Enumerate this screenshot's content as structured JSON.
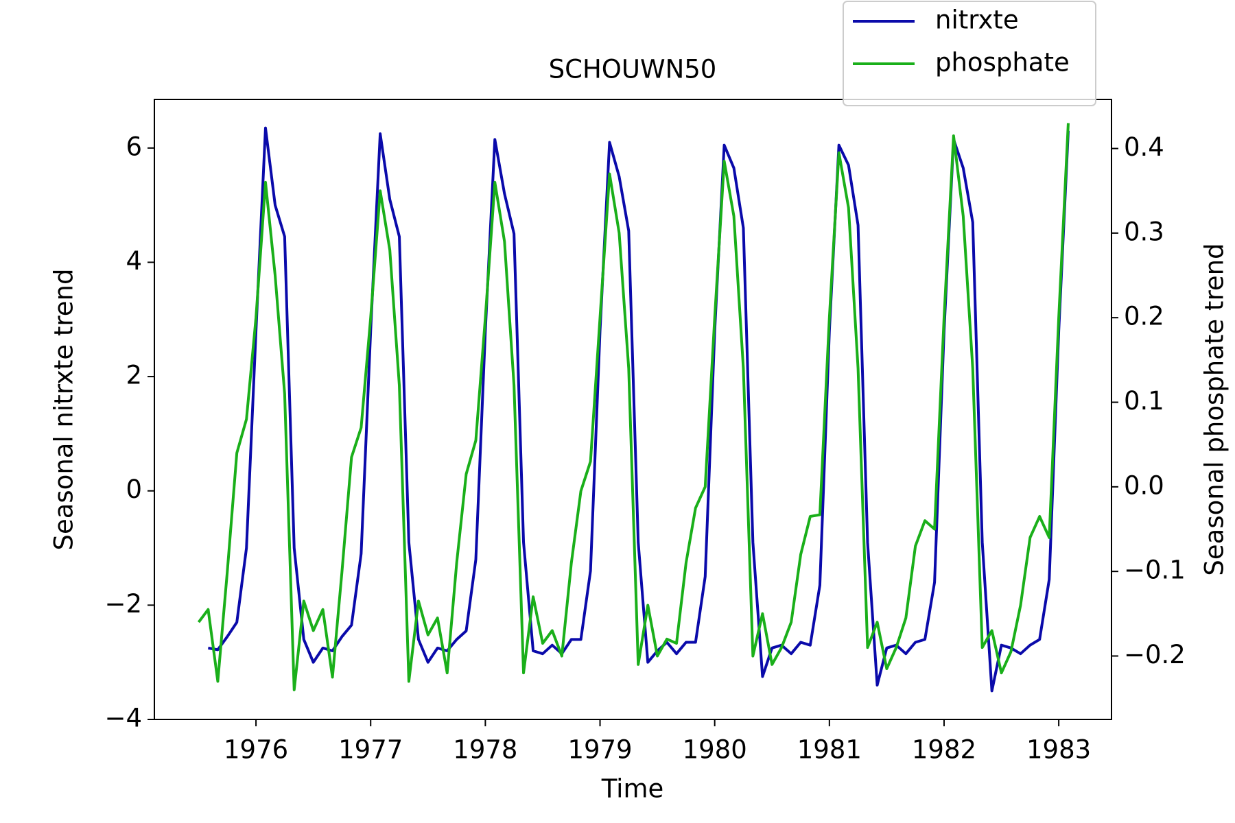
{
  "chart_data": {
    "type": "line",
    "title": "SCHOUWN50",
    "xlabel": "Time",
    "ylabel": "Seasonal nitrxte trend",
    "y2label": "Seasonal phosphate trend",
    "legend": "upper right",
    "x": [
      1975.5,
      1975.583,
      1975.667,
      1975.75,
      1975.833,
      1975.917,
      1976.0,
      1976.083,
      1976.167,
      1976.25,
      1976.333,
      1976.417,
      1976.5,
      1976.583,
      1976.667,
      1976.75,
      1976.833,
      1976.917,
      1977.0,
      1977.083,
      1977.167,
      1977.25,
      1977.333,
      1977.417,
      1977.5,
      1977.583,
      1977.667,
      1977.75,
      1977.833,
      1977.917,
      1978.0,
      1978.083,
      1978.167,
      1978.25,
      1978.333,
      1978.417,
      1978.5,
      1978.583,
      1978.667,
      1978.75,
      1978.833,
      1978.917,
      1979.0,
      1979.083,
      1979.167,
      1979.25,
      1979.333,
      1979.417,
      1979.5,
      1979.583,
      1979.667,
      1979.75,
      1979.833,
      1979.917,
      1980.0,
      1980.083,
      1980.167,
      1980.25,
      1980.333,
      1980.417,
      1980.5,
      1980.583,
      1980.667,
      1980.75,
      1980.833,
      1980.917,
      1981.0,
      1981.083,
      1981.167,
      1981.25,
      1981.333,
      1981.417,
      1981.5,
      1981.583,
      1981.667,
      1981.75,
      1981.833,
      1981.917,
      1982.0,
      1982.083,
      1982.167,
      1982.25,
      1982.333,
      1982.417,
      1982.5,
      1982.583,
      1982.667,
      1982.75,
      1982.833,
      1982.917,
      1983.0,
      1983.083
    ],
    "series": [
      {
        "name": "nitrxte",
        "color": "#0a0aaa",
        "values": [
          null,
          -2.75,
          -2.78,
          -2.55,
          -2.3,
          -1.0,
          2.8,
          6.35,
          5.0,
          4.45,
          -1.0,
          -2.6,
          -3.0,
          -2.75,
          -2.8,
          -2.55,
          -2.35,
          -1.1,
          2.8,
          6.25,
          5.1,
          4.45,
          -0.9,
          -2.6,
          -3.0,
          -2.75,
          -2.8,
          -2.6,
          -2.45,
          -1.2,
          2.8,
          6.15,
          5.2,
          4.5,
          -0.9,
          -2.8,
          -2.85,
          -2.7,
          -2.85,
          -2.6,
          -2.6,
          -1.4,
          2.8,
          6.1,
          5.5,
          4.55,
          -0.9,
          -3.0,
          -2.8,
          -2.65,
          -2.85,
          -2.65,
          -2.65,
          -1.5,
          2.8,
          6.05,
          5.65,
          4.6,
          -0.9,
          -3.25,
          -2.75,
          -2.7,
          -2.85,
          -2.65,
          -2.7,
          -1.65,
          2.8,
          6.05,
          5.7,
          4.65,
          -0.9,
          -3.4,
          -2.75,
          -2.7,
          -2.85,
          -2.65,
          -2.6,
          -1.6,
          2.8,
          6.15,
          5.65,
          4.7,
          -0.9,
          -3.5,
          -2.7,
          -2.75,
          -2.85,
          -2.7,
          -2.6,
          -1.55,
          2.8,
          6.3
        ]
      },
      {
        "name": "phosphate",
        "color": "#1aaf1a",
        "axis": "y2",
        "values": [
          -0.16,
          -0.145,
          -0.23,
          -0.1,
          0.04,
          0.08,
          0.2,
          0.36,
          0.25,
          0.11,
          -0.24,
          -0.135,
          -0.17,
          -0.145,
          -0.225,
          -0.1,
          0.035,
          0.07,
          0.2,
          0.35,
          0.28,
          0.12,
          -0.23,
          -0.135,
          -0.175,
          -0.155,
          -0.22,
          -0.09,
          0.015,
          0.055,
          0.2,
          0.36,
          0.29,
          0.12,
          -0.22,
          -0.13,
          -0.185,
          -0.17,
          -0.2,
          -0.09,
          -0.005,
          0.03,
          0.2,
          0.37,
          0.3,
          0.14,
          -0.21,
          -0.14,
          -0.2,
          -0.18,
          -0.185,
          -0.09,
          -0.025,
          0.0,
          0.2,
          0.385,
          0.32,
          0.14,
          -0.2,
          -0.15,
          -0.21,
          -0.19,
          -0.16,
          -0.08,
          -0.035,
          -0.033,
          0.2,
          0.395,
          0.33,
          0.14,
          -0.19,
          -0.16,
          -0.215,
          -0.19,
          -0.155,
          -0.07,
          -0.04,
          -0.05,
          0.2,
          0.415,
          0.32,
          0.14,
          -0.19,
          -0.17,
          -0.22,
          -0.195,
          -0.14,
          -0.06,
          -0.035,
          -0.06,
          0.2,
          0.43
        ]
      }
    ],
    "xlim": [
      1975.114,
      1983.46
    ],
    "xticks": [
      1976,
      1977,
      1978,
      1979,
      1980,
      1981,
      1982,
      1983
    ],
    "ylim": [
      -4,
      6.85
    ],
    "yticks": [
      {
        "value": -4,
        "label": "−4"
      },
      {
        "value": -2,
        "label": "−2"
      },
      0,
      2,
      4,
      6
    ],
    "y2lim": [
      -0.275,
      0.458
    ],
    "y2ticks": [
      {
        "value": -0.2,
        "label": "−0.2"
      },
      {
        "value": -0.1,
        "label": "−0.1"
      },
      {
        "value": 0,
        "label": "0.0"
      },
      0.1,
      0.2,
      0.3,
      0.4
    ]
  }
}
